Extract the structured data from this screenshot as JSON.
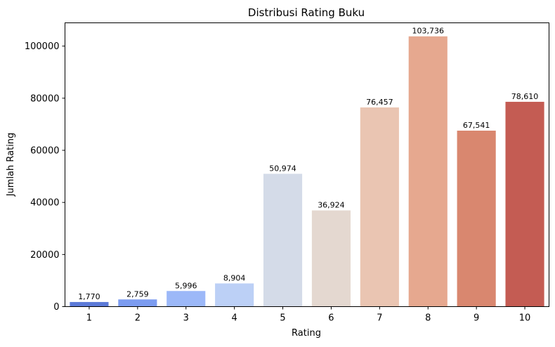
{
  "chart_data": {
    "type": "bar",
    "title": "Distribusi Rating Buku",
    "xlabel": "Rating",
    "ylabel": "Jumlah Rating",
    "categories": [
      "1",
      "2",
      "3",
      "4",
      "5",
      "6",
      "7",
      "8",
      "9",
      "10"
    ],
    "values": [
      1770,
      2759,
      5996,
      8904,
      50974,
      36924,
      76457,
      103736,
      67541,
      78610
    ],
    "data_labels": [
      "1,770",
      "2,759",
      "5,996",
      "8,904",
      "50,974",
      "36,924",
      "76,457",
      "103,736",
      "67,541",
      "78,610"
    ],
    "colors": [
      "#5c7ad8",
      "#7c9cf0",
      "#9cb8f8",
      "#bcd0f6",
      "#d4dbe8",
      "#e4d8d0",
      "#eac5b2",
      "#e6a88f",
      "#d9876f",
      "#c45c53"
    ],
    "yticks": [
      0,
      20000,
      40000,
      60000,
      80000,
      100000
    ],
    "ytick_labels": [
      "0",
      "20000",
      "40000",
      "60000",
      "80000",
      "100000"
    ],
    "ylim": [
      0,
      108923
    ],
    "grid": false,
    "legend": "none"
  }
}
